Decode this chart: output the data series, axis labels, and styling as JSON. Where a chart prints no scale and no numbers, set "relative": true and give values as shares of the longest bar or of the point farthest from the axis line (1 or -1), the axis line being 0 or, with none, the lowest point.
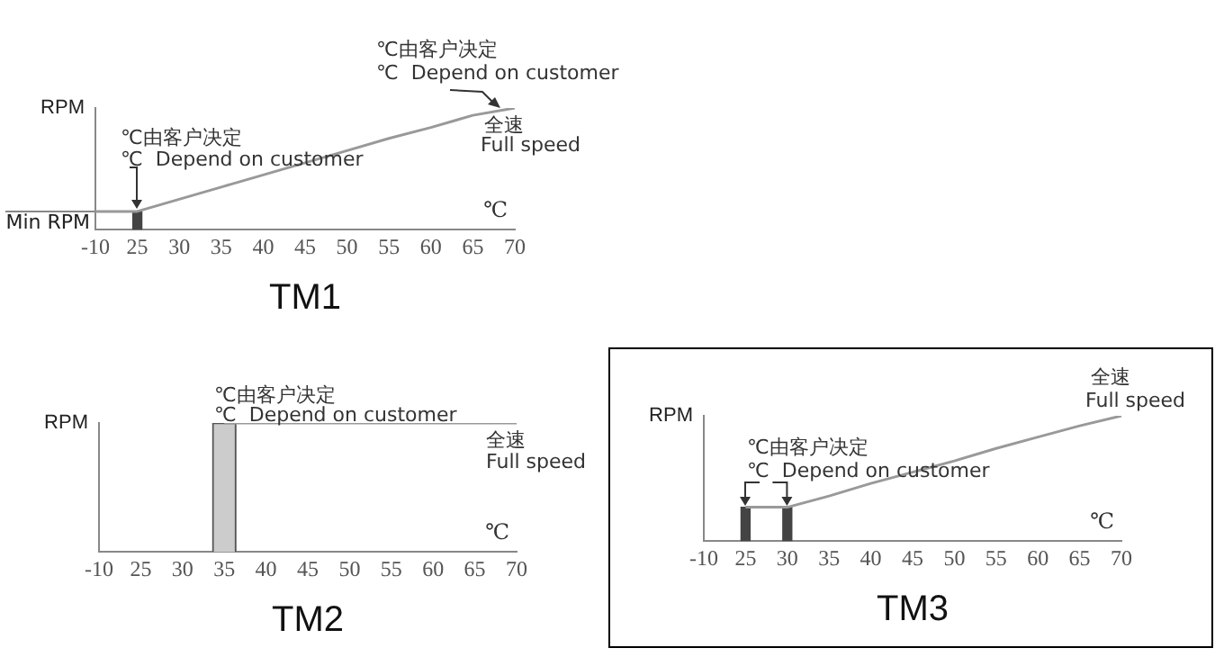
{
  "chart_data": [
    {
      "type": "line",
      "title": "TM1",
      "xlabel": "℃",
      "ylabel": "RPM",
      "relative": true,
      "grid": false,
      "legend": false,
      "categories": [
        "-10",
        "25",
        "30",
        "35",
        "40",
        "45",
        "50",
        "55",
        "60",
        "65",
        "70"
      ],
      "series": [
        {
          "type": "bar",
          "color": "#444444",
          "values": [
            null,
            0.15,
            null,
            null,
            null,
            null,
            null,
            null,
            null,
            null,
            null
          ]
        },
        {
          "color": "#999999",
          "values": [
            0.15,
            0.15,
            0.25,
            0.35,
            0.45,
            0.55,
            0.65,
            0.75,
            0.84,
            0.94,
            1
          ]
        }
      ],
      "ref_lines": [
        {
          "axis": "y",
          "value": 0.15,
          "label": "Min RPM"
        }
      ],
      "annotations": [
        "℃由客户决定",
        "℃  Depend on customer",
        "℃由客户决定",
        "℃  Depend on customer",
        "全速",
        "Full speed"
      ]
    },
    {
      "type": "line",
      "title": "TM2",
      "xlabel": "℃",
      "ylabel": "RPM",
      "relative": true,
      "grid": false,
      "legend": false,
      "categories": [
        "-10",
        "25",
        "30",
        "35",
        "40",
        "45",
        "50",
        "55",
        "60",
        "65",
        "70"
      ],
      "series": [
        {
          "type": "bar",
          "color": "#cccccc",
          "values": [
            null,
            null,
            null,
            1,
            null,
            null,
            null,
            null,
            null,
            null,
            null
          ]
        },
        {
          "color": "#999999",
          "values": [
            null,
            null,
            null,
            1,
            1,
            1,
            1,
            1,
            1,
            1,
            1
          ]
        }
      ],
      "annotations": [
        "℃由客户决定",
        "℃  Depend on customer",
        "全速",
        "Full speed"
      ]
    },
    {
      "type": "line",
      "title": "TM3",
      "xlabel": "℃",
      "ylabel": "RPM",
      "relative": true,
      "grid": false,
      "legend": false,
      "categories": [
        "-10",
        "25",
        "30",
        "35",
        "40",
        "45",
        "50",
        "55",
        "60",
        "65",
        "70"
      ],
      "series": [
        {
          "type": "bar",
          "color": "#444444",
          "values": [
            null,
            0.27,
            0.27,
            null,
            null,
            null,
            null,
            null,
            null,
            null,
            null
          ]
        },
        {
          "color": "#999999",
          "values": [
            null,
            0.27,
            0.27,
            0.36,
            0.46,
            0.55,
            0.64,
            0.74,
            0.83,
            0.92,
            1
          ]
        }
      ],
      "annotations": [
        "℃由客户决定",
        "℃  Depend on customer",
        "全速",
        "Full speed"
      ]
    }
  ]
}
